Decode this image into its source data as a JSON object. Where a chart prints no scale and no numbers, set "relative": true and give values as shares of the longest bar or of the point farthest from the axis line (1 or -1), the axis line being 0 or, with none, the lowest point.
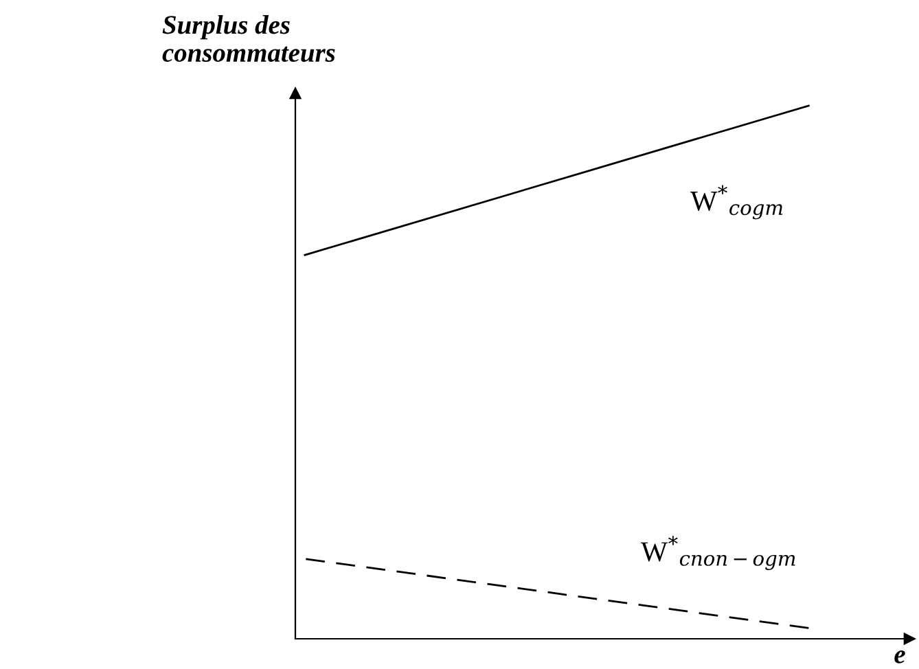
{
  "chart_data": {
    "type": "line",
    "relative": true,
    "ylabel": "Surplus des consommateurs",
    "xlabel": "e",
    "categories": [
      null,
      null
    ],
    "legend": false,
    "grid": false,
    "marker": "none",
    "series": [
      {
        "name": "W$^{*}$$_{cogm}$",
        "color": "#000000",
        "line_style": "solid",
        "values": [
          0.72,
          1.0
        ]
      },
      {
        "name": "W$^{*}$$_{cnon−ogm}$",
        "color": "#000000",
        "line_style": "dashed",
        "values": [
          0.15,
          0.02
        ]
      }
    ]
  }
}
